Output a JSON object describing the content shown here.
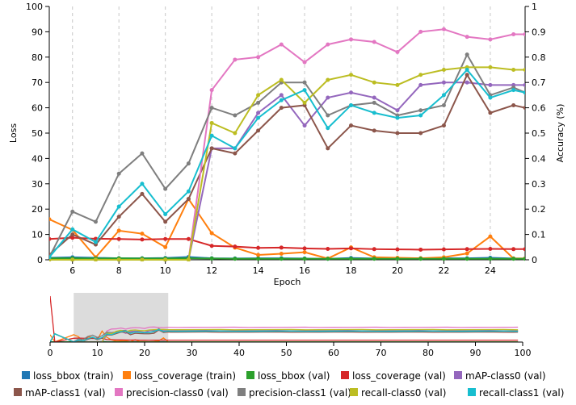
{
  "chart_data": {
    "type": "line",
    "xlabel": "Epoch",
    "ylabel_left": "Loss",
    "ylabel_right": "Accuracy (%)",
    "xlim": [
      5,
      25.5
    ],
    "ylim_left": [
      0,
      100
    ],
    "ylim_right": [
      0,
      1
    ],
    "x_ticks": [
      6,
      8,
      10,
      12,
      14,
      16,
      18,
      20,
      22,
      24
    ],
    "y_ticks_left": [
      0,
      10,
      20,
      30,
      40,
      50,
      60,
      70,
      80,
      90,
      100
    ],
    "y_ticks_right": [
      0,
      0.1,
      0.2,
      0.3,
      0.4,
      0.5,
      0.6,
      0.7,
      0.8,
      0.9,
      1
    ],
    "grid": "vertical dashed",
    "x": [
      5,
      6,
      7,
      8,
      9,
      10,
      11,
      12,
      13,
      14,
      15,
      16,
      17,
      18,
      19,
      20,
      21,
      22,
      23,
      24,
      25,
      25.5
    ],
    "series": [
      {
        "name": "loss_bbox (train)",
        "axis": "left",
        "color": "#1f77b4",
        "values": [
          0.8,
          1,
          0.8,
          0.6,
          0.6,
          0.7,
          1.1,
          0.6,
          0.5,
          0.6,
          0.6,
          0.5,
          0.4,
          0.7,
          0.5,
          0.5,
          0.6,
          0.6,
          0.6,
          0.8,
          0.5,
          0.5
        ]
      },
      {
        "name": "loss_coverage (train)",
        "axis": "left",
        "color": "#ff7f0e",
        "values": [
          16,
          11.8,
          1,
          11.5,
          10.3,
          5,
          24,
          10.5,
          4.8,
          1.9,
          2.4,
          3,
          0.5,
          4.9,
          1,
          0.8,
          0.6,
          1,
          2.5,
          9.2,
          0.5,
          0.5
        ]
      },
      {
        "name": "loss_bbox (val)",
        "axis": "left",
        "color": "#2ca02c",
        "values": [
          0.6,
          0.6,
          0.5,
          0.6,
          0.5,
          0.5,
          0.6,
          0.5,
          0.4,
          0.4,
          0.4,
          0.4,
          0.4,
          0.4,
          0.4,
          0.4,
          0.4,
          0.4,
          0.4,
          0.4,
          0.4,
          0.4
        ]
      },
      {
        "name": "loss_coverage (val)",
        "axis": "left",
        "color": "#d62728",
        "values": [
          8.2,
          8.7,
          8.3,
          8.2,
          8,
          8.2,
          8.2,
          5.5,
          5.2,
          4.7,
          4.8,
          4.5,
          4.3,
          4.5,
          4.2,
          4.1,
          4,
          4.1,
          4.2,
          4.3,
          4.2,
          4.2
        ]
      },
      {
        "name": "mAP-class0 (val)",
        "axis": "right",
        "color": "#9467bd",
        "values": [
          0,
          0,
          0,
          0,
          0,
          0,
          0,
          0.44,
          0.44,
          0.58,
          0.65,
          0.53,
          0.64,
          0.66,
          0.64,
          0.59,
          0.69,
          0.7,
          0.7,
          0.69,
          0.69,
          0.69
        ]
      },
      {
        "name": "mAP-class1 (val)",
        "axis": "right",
        "color": "#8c564b",
        "values": [
          0.02,
          0.1,
          0.06,
          0.17,
          0.26,
          0.15,
          0.24,
          0.44,
          0.42,
          0.51,
          0.6,
          0.61,
          0.44,
          0.53,
          0.51,
          0.5,
          0.5,
          0.53,
          0.73,
          0.58,
          0.61,
          0.6
        ]
      },
      {
        "name": "precision-class0 (val)",
        "axis": "right",
        "color": "#e377c2",
        "values": [
          0,
          0,
          0,
          0,
          0,
          0,
          0,
          0.67,
          0.79,
          0.8,
          0.85,
          0.78,
          0.85,
          0.87,
          0.86,
          0.82,
          0.9,
          0.91,
          0.88,
          0.87,
          0.89,
          0.89
        ]
      },
      {
        "name": "precision-class1 (val)",
        "axis": "right",
        "color": "#7f7f7f",
        "values": [
          0.01,
          0.19,
          0.15,
          0.34,
          0.42,
          0.28,
          0.38,
          0.6,
          0.57,
          0.62,
          0.7,
          0.7,
          0.57,
          0.61,
          0.62,
          0.57,
          0.59,
          0.61,
          0.81,
          0.65,
          0.68,
          0.66
        ]
      },
      {
        "name": "recall-class0 (val)",
        "axis": "right",
        "color": "#bcbd22",
        "values": [
          0,
          0,
          0,
          0,
          0,
          0,
          0,
          0.54,
          0.5,
          0.65,
          0.71,
          0.62,
          0.71,
          0.73,
          0.7,
          0.69,
          0.73,
          0.75,
          0.76,
          0.76,
          0.75,
          0.75
        ]
      },
      {
        "name": "recall-class1 (val)",
        "axis": "right",
        "color": "#17becf",
        "values": [
          0.01,
          0.12,
          0.07,
          0.21,
          0.3,
          0.18,
          0.27,
          0.49,
          0.44,
          0.56,
          0.63,
          0.67,
          0.52,
          0.61,
          0.58,
          0.56,
          0.57,
          0.65,
          0.75,
          0.64,
          0.67,
          0.66
        ]
      }
    ],
    "overview": {
      "xlim": [
        0,
        100
      ],
      "x_ticks": [
        0,
        10,
        20,
        30,
        40,
        50,
        60,
        70,
        80,
        90,
        100
      ],
      "brush_range": [
        5,
        25
      ]
    },
    "legend_position": "bottom"
  }
}
